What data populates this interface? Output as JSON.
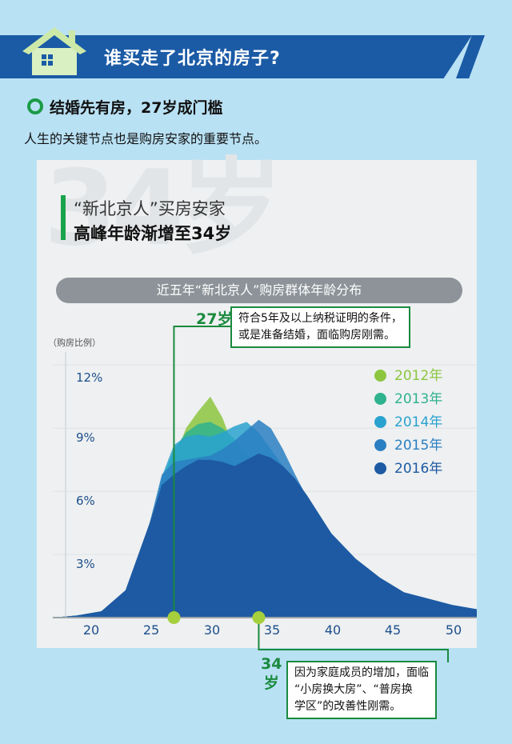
{
  "header": {
    "title": "谁买走了北京的房子?"
  },
  "section": {
    "heading": "结婚先有房，27岁成门槛",
    "intro": "人生的关键节点也是购房安家的重要节点。"
  },
  "panel": {
    "watermark": "34岁",
    "title_line1": "“新北京人”买房安家",
    "title_line2": "高峰年龄渐增至34岁",
    "chart_title": "近五年“新北京人”购房群体年龄分布"
  },
  "annotations": {
    "age27": {
      "label": "27岁",
      "text_lines": [
        "符合5年及以上纳税证明的条件，",
        "或是准备结婚，面临购房刚需。"
      ]
    },
    "age34": {
      "label_top": "34",
      "label_bottom": "岁",
      "text_lines": [
        "因为家庭成员的增加，面临",
        "“小房换大房”、“普房换",
        "学区”的改善性刚需。"
      ]
    }
  },
  "colors": {
    "2012": "#8cc63f",
    "2013": "#2fb28e",
    "2014": "#2aa2cf",
    "2015": "#2a7fc2",
    "2016": "#1d5aa3",
    "accent": "#1a8a3e"
  },
  "chart_data": {
    "type": "area",
    "ylabel": "（购房比例）",
    "yticks": [
      "3%",
      "6%",
      "9%",
      "12%"
    ],
    "xticks": [
      "20",
      "25",
      "30",
      "35",
      "40",
      "45",
      "50"
    ],
    "xlim": [
      17,
      52
    ],
    "ylim": [
      0,
      13
    ],
    "x": [
      17,
      19,
      21,
      23,
      25,
      26,
      27,
      28,
      29,
      30,
      31,
      32,
      33,
      34,
      35,
      36,
      37,
      38,
      39,
      40,
      42,
      44,
      46,
      48,
      50,
      52
    ],
    "series": [
      {
        "name": "2012年",
        "values": [
          0,
          0.1,
          0.3,
          1,
          3.5,
          5.5,
          7.5,
          9,
          9.8,
          10.5,
          9.5,
          8,
          7,
          6,
          5,
          4,
          3.3,
          2.8,
          2.3,
          1.8,
          1.2,
          0.7,
          0.5,
          0.4,
          0.3,
          0.2
        ]
      },
      {
        "name": "2013年",
        "values": [
          0,
          0.1,
          0.3,
          1.1,
          4,
          6.5,
          8,
          8.8,
          9.2,
          9.3,
          9,
          8.5,
          7.8,
          7,
          6.2,
          5,
          4.2,
          3.5,
          2.9,
          2.3,
          1.5,
          1,
          0.7,
          0.5,
          0.4,
          0.3
        ]
      },
      {
        "name": "2014年",
        "values": [
          0,
          0.1,
          0.3,
          1.1,
          4.2,
          6.7,
          8.2,
          8.6,
          8.7,
          8.6,
          8.8,
          9.1,
          9.3,
          8.8,
          8,
          7.2,
          6.2,
          5.2,
          4.3,
          3.5,
          2.4,
          1.6,
          1,
          0.7,
          0.5,
          0.4
        ]
      },
      {
        "name": "2015年",
        "values": [
          0,
          0.1,
          0.3,
          1.2,
          4.5,
          6.8,
          7.4,
          7.5,
          7.6,
          7.7,
          8,
          8.4,
          8.9,
          9.4,
          9,
          8,
          6.8,
          5.7,
          4.7,
          3.8,
          2.6,
          1.8,
          1.1,
          0.8,
          0.6,
          0.4
        ]
      },
      {
        "name": "2016年",
        "values": [
          0,
          0.1,
          0.3,
          1.3,
          4.5,
          6.3,
          6.8,
          7.2,
          7.5,
          7.5,
          7.4,
          7.2,
          7.5,
          7.8,
          7.6,
          7.2,
          6.6,
          5.8,
          4.9,
          4,
          2.8,
          1.9,
          1.2,
          0.9,
          0.6,
          0.4
        ]
      }
    ],
    "markers": [
      27,
      34
    ],
    "legend": "right"
  }
}
